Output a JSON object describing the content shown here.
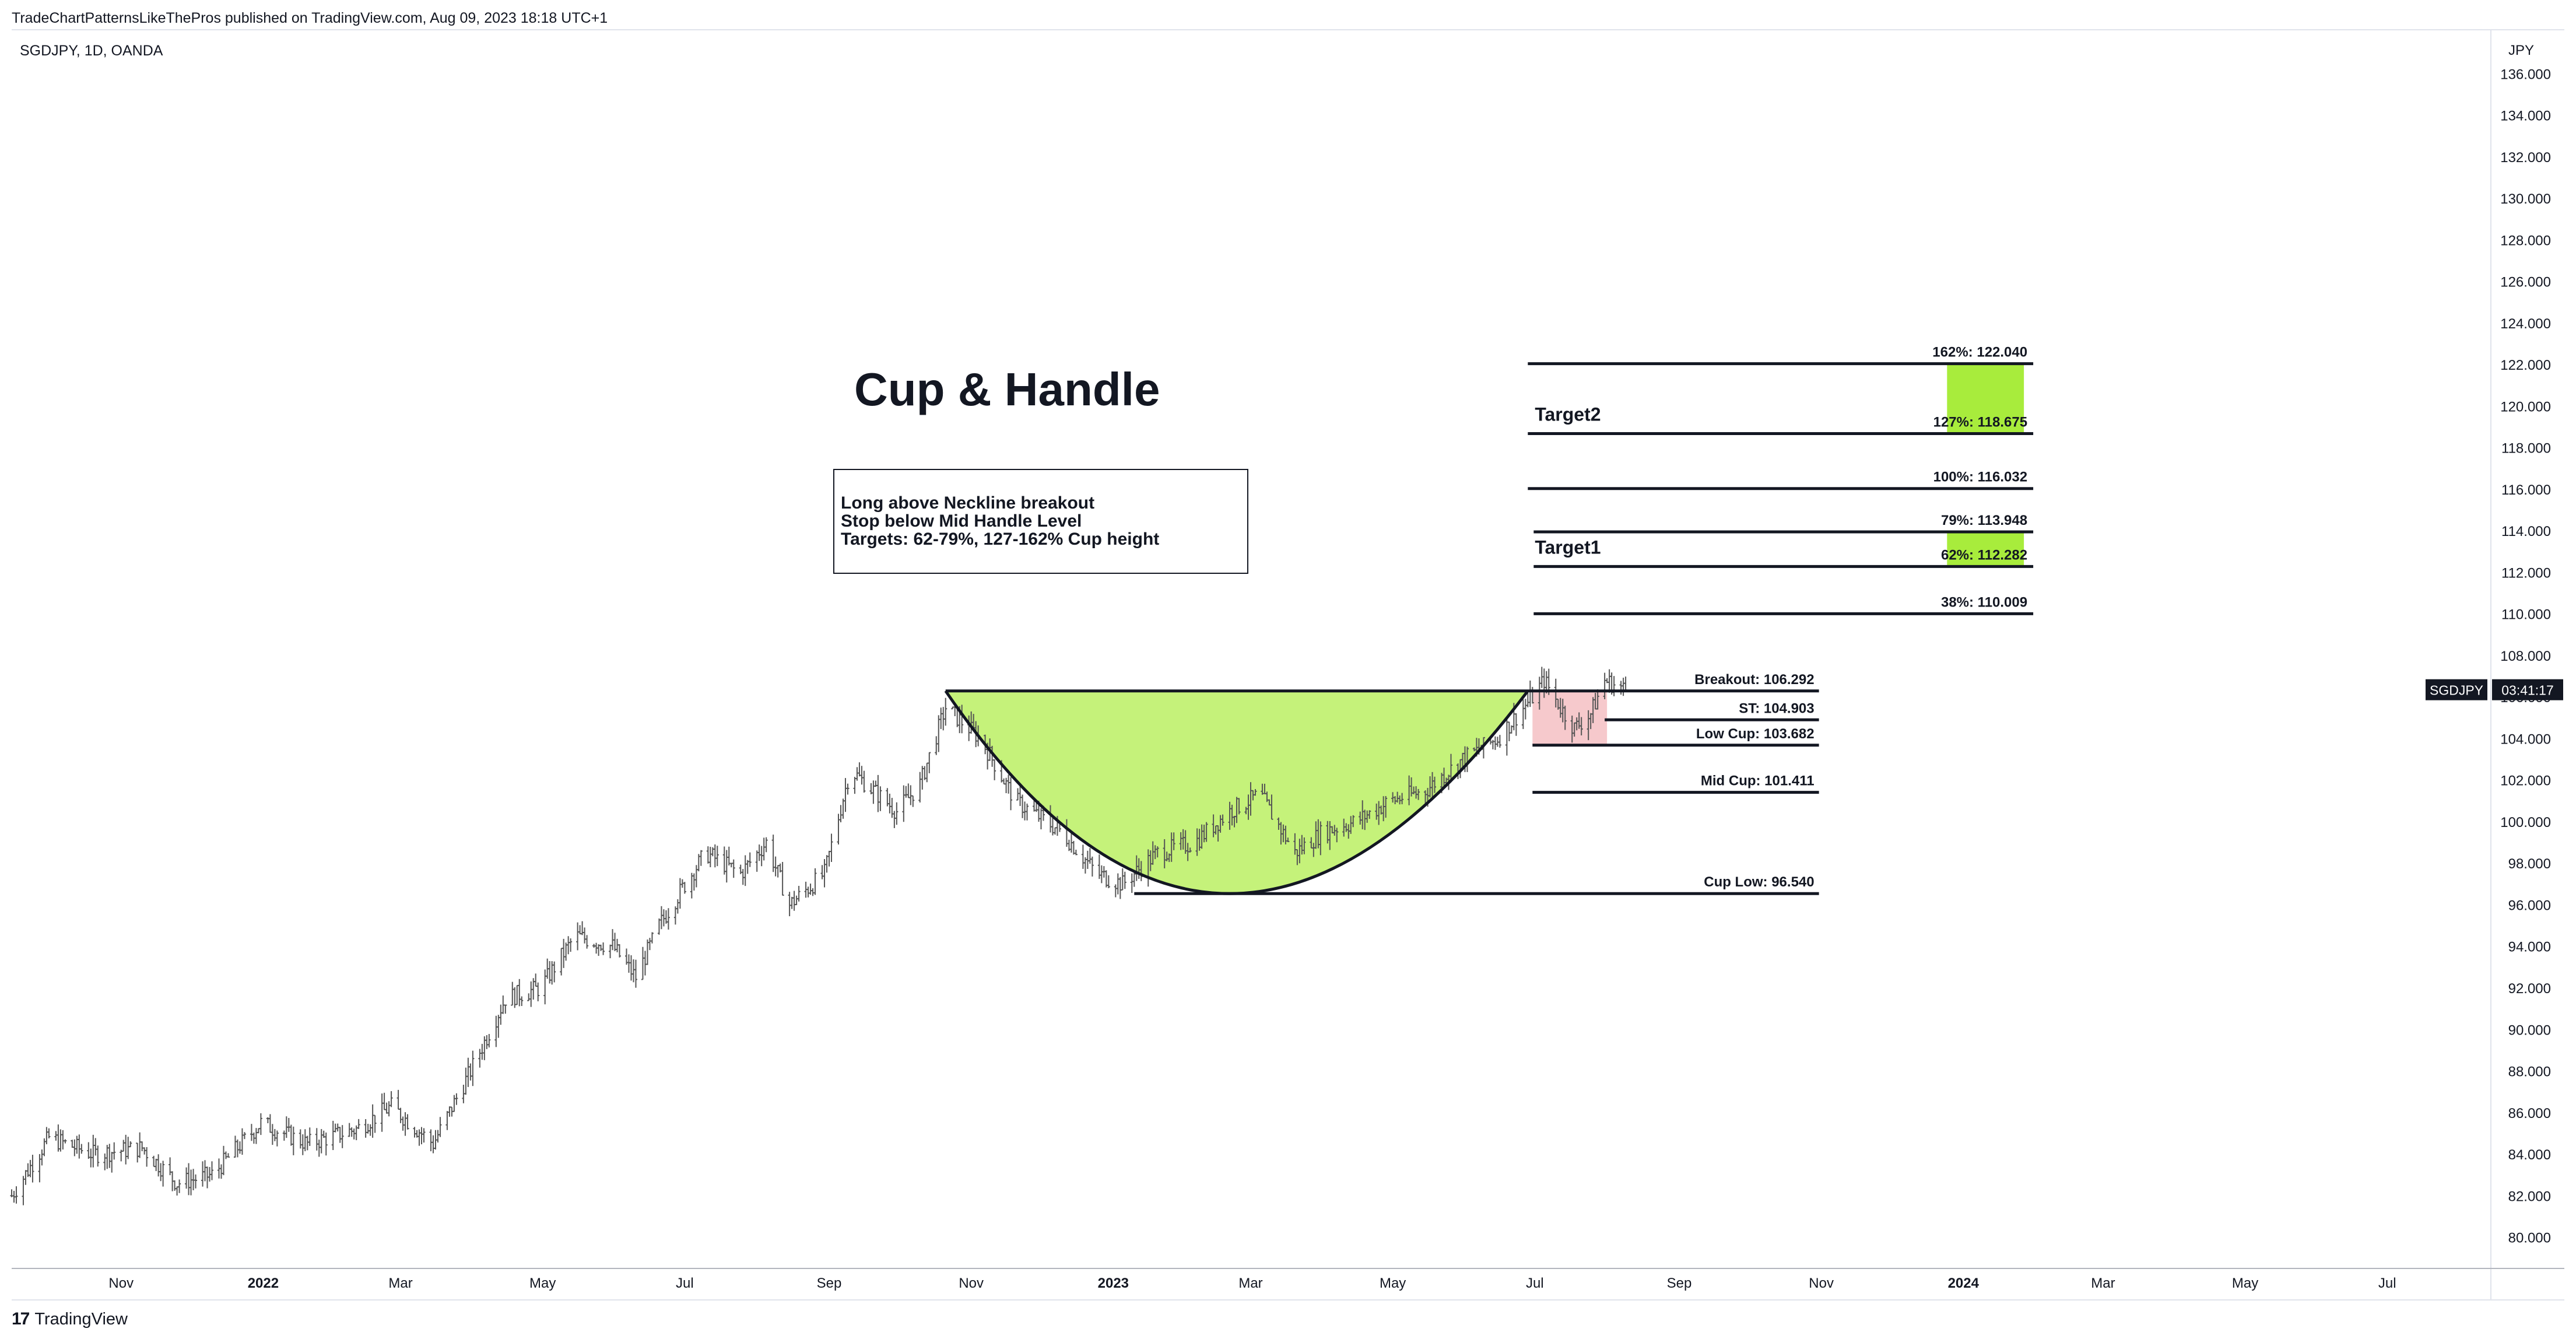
{
  "header": {
    "text": "TradeChartPatternsLikeThePros published on TradingView.com, Aug 09, 2023 18:18 UTC+1"
  },
  "symbol_line": "SGDJPY, 1D, OANDA",
  "currency": "JPY",
  "footer": {
    "brand": "TradingView",
    "logo_icon": "tradingview-logo-icon"
  },
  "price_badge": {
    "symbol": "SGDJPY",
    "countdown": "03:41:17",
    "value": 106.35
  },
  "colors": {
    "cup_fill": "#c5f27a",
    "target_fill": "#a8ec3c",
    "stop_fill": "#f6c9cc",
    "line": "#131722",
    "bars": "#555555"
  },
  "chart_data": {
    "type": "bar",
    "title": "Cup & Handle",
    "xlabel": "",
    "ylabel": "",
    "y_axis_side": "right",
    "ylim": [
      78.5,
      138.0
    ],
    "y_ticks": [
      80,
      82,
      84,
      86,
      88,
      90,
      92,
      94,
      96,
      98,
      100,
      102,
      104,
      106,
      108,
      110,
      112,
      114,
      116,
      118,
      120,
      122,
      124,
      126,
      128,
      130,
      132,
      134,
      136
    ],
    "xlim": [
      "2021-09-15",
      "2024-08-14"
    ],
    "x_ticks": [
      {
        "date": "2021-11-01",
        "label": "Nov",
        "bold": false
      },
      {
        "date": "2022-01-01",
        "label": "2022",
        "bold": true
      },
      {
        "date": "2022-03-01",
        "label": "Mar",
        "bold": false
      },
      {
        "date": "2022-05-01",
        "label": "May",
        "bold": false
      },
      {
        "date": "2022-07-01",
        "label": "Jul",
        "bold": false
      },
      {
        "date": "2022-09-01",
        "label": "Sep",
        "bold": false
      },
      {
        "date": "2022-11-01",
        "label": "Nov",
        "bold": false
      },
      {
        "date": "2023-01-01",
        "label": "2023",
        "bold": true
      },
      {
        "date": "2023-03-01",
        "label": "Mar",
        "bold": false
      },
      {
        "date": "2023-05-01",
        "label": "May",
        "bold": false
      },
      {
        "date": "2023-07-01",
        "label": "Jul",
        "bold": false
      },
      {
        "date": "2023-09-01",
        "label": "Sep",
        "bold": false
      },
      {
        "date": "2023-11-01",
        "label": "Nov",
        "bold": false
      },
      {
        "date": "2024-01-01",
        "label": "2024",
        "bold": true
      },
      {
        "date": "2024-03-01",
        "label": "Mar",
        "bold": false
      },
      {
        "date": "2024-05-01",
        "label": "May",
        "bold": false
      },
      {
        "date": "2024-07-01",
        "label": "Jul",
        "bold": false
      }
    ],
    "price_path": [
      [
        "2021-09-15",
        82.0
      ],
      [
        "2021-10-01",
        84.8
      ],
      [
        "2021-10-20",
        84.0
      ],
      [
        "2021-11-10",
        84.3
      ],
      [
        "2021-11-25",
        82.6
      ],
      [
        "2021-12-10",
        83.0
      ],
      [
        "2021-12-31",
        85.5
      ],
      [
        "2022-01-20",
        84.5
      ],
      [
        "2022-02-10",
        85.2
      ],
      [
        "2022-02-25",
        86.3
      ],
      [
        "2022-03-15",
        84.5
      ],
      [
        "2022-03-31",
        88.0
      ],
      [
        "2022-04-15",
        91.5
      ],
      [
        "2022-04-30",
        92.0
      ],
      [
        "2022-05-15",
        94.5
      ],
      [
        "2022-05-31",
        94.0
      ],
      [
        "2022-06-10",
        92.5
      ],
      [
        "2022-06-20",
        95.0
      ],
      [
        "2022-06-30",
        96.8
      ],
      [
        "2022-07-10",
        98.5
      ],
      [
        "2022-07-25",
        97.5
      ],
      [
        "2022-08-05",
        99.0
      ],
      [
        "2022-08-15",
        96.0
      ],
      [
        "2022-08-30",
        97.5
      ],
      [
        "2022-09-10",
        102.5
      ],
      [
        "2022-09-20",
        101.5
      ],
      [
        "2022-09-30",
        100.5
      ],
      [
        "2022-10-10",
        101.8
      ],
      [
        "2022-10-21",
        105.5
      ],
      [
        "2022-11-05",
        104.0
      ],
      [
        "2022-11-20",
        101.0
      ],
      [
        "2022-12-10",
        99.5
      ],
      [
        "2022-12-25",
        97.5
      ],
      [
        "2023-01-05",
        97.0
      ],
      [
        "2023-01-20",
        98.5
      ],
      [
        "2023-02-05",
        99.0
      ],
      [
        "2023-02-20",
        100.5
      ],
      [
        "2023-03-05",
        101.3
      ],
      [
        "2023-03-20",
        98.5
      ],
      [
        "2023-04-01",
        99.5
      ],
      [
        "2023-04-15",
        100.0
      ],
      [
        "2023-04-30",
        101.0
      ],
      [
        "2023-05-15",
        101.5
      ],
      [
        "2023-05-31",
        103.0
      ],
      [
        "2023-06-15",
        104.0
      ],
      [
        "2023-06-30",
        106.0
      ],
      [
        "2023-07-05",
        106.8
      ],
      [
        "2023-07-12",
        105.5
      ],
      [
        "2023-07-18",
        104.5
      ],
      [
        "2023-07-25",
        105.2
      ],
      [
        "2023-07-31",
        106.8
      ],
      [
        "2023-08-09",
        106.35
      ]
    ],
    "cup": {
      "rim_left": [
        "2022-10-21",
        106.292
      ],
      "rim_right": [
        "2023-06-28",
        106.292
      ],
      "bottom": [
        "2023-02-20",
        96.54
      ]
    },
    "levels": [
      {
        "label": "Breakout: 106.292",
        "value": 106.292,
        "start": "2023-06-20",
        "end": "2023-10-31"
      },
      {
        "label": "ST: 104.903",
        "value": 104.903,
        "start": "2023-07-31",
        "end": "2023-10-31"
      },
      {
        "label": "Low Cup: 103.682",
        "value": 103.682,
        "start": "2023-06-30",
        "end": "2023-10-31"
      },
      {
        "label": "Mid Cup: 101.411",
        "value": 101.411,
        "start": "2023-06-30",
        "end": "2023-10-31"
      },
      {
        "label": "Cup Low: 96.540",
        "value": 96.54,
        "start": "2023-01-10",
        "end": "2023-10-31"
      }
    ],
    "fib_levels": [
      {
        "label": "162%: 122.040",
        "value": 122.04
      },
      {
        "label": "127%: 118.675",
        "value": 118.675
      },
      {
        "label": "100%: 116.032",
        "value": 116.032
      },
      {
        "label": "79%: 113.948",
        "value": 113.948
      },
      {
        "label": "62%: 112.282",
        "value": 112.282
      },
      {
        "label": "38%: 110.009",
        "value": 110.009
      }
    ],
    "fib_range": {
      "start": "2023-06-28",
      "end": "2024-01-31",
      "zone_start": "2023-12-25",
      "zone_end": "2024-01-27"
    },
    "targets": [
      {
        "label": "Target2",
        "value_high": 122.04,
        "value_low": 118.675
      },
      {
        "label": "Target1",
        "value_high": 113.948,
        "value_low": 112.282
      }
    ],
    "stop_zone": {
      "start": "2023-06-30",
      "end": "2023-08-01",
      "top": 106.292,
      "bottom": 103.682
    },
    "annotations": {
      "title": "Cup & Handle",
      "notes": [
        "Long above Neckline breakout",
        "Stop below Mid Handle Level",
        "Targets: 62-79%, 127-162% Cup height"
      ]
    }
  }
}
